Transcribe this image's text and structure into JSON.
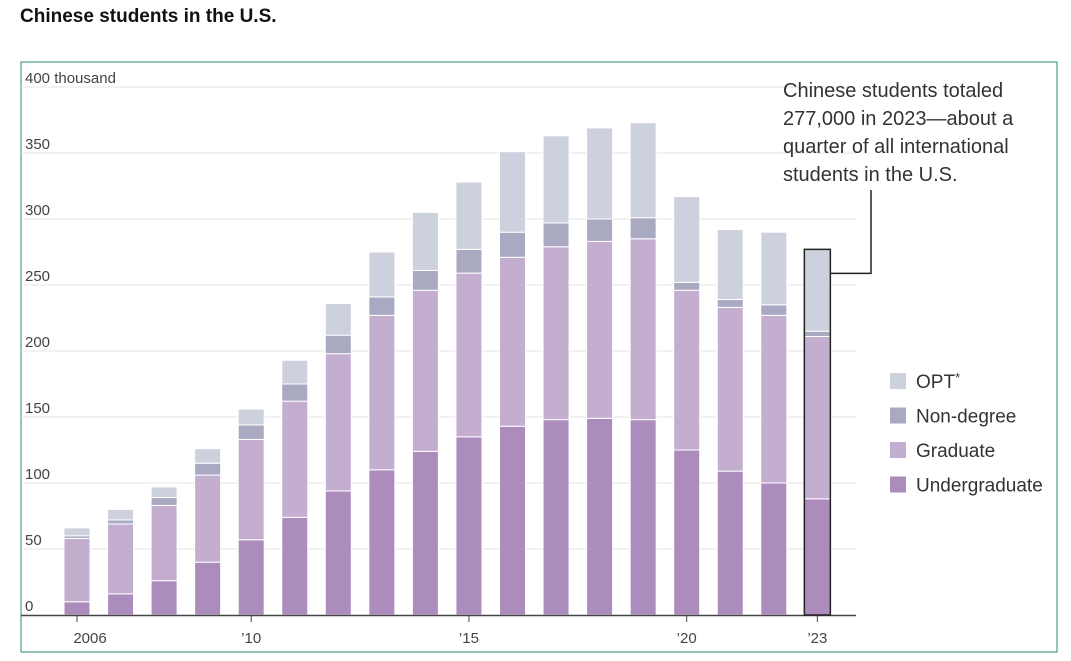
{
  "title": "Chinese students in the U.S.",
  "colors": {
    "OPT": "#cdd1dd",
    "Non-degree": "#a9a9c2",
    "Graduate": "#c4aed0",
    "Undergraduate": "#ab8cbd"
  },
  "legend": [
    {
      "name": "OPT",
      "marker": "*"
    },
    {
      "name": "Non-degree",
      "marker": ""
    },
    {
      "name": "Graduate",
      "marker": ""
    },
    {
      "name": "Undergraduate",
      "marker": ""
    }
  ],
  "annotation": {
    "lines": [
      "Chinese students totaled",
      "277,000 in 2023—about a",
      "quarter of all international",
      "students in the U.S."
    ]
  },
  "chart_data": {
    "type": "bar",
    "stacked": true,
    "title": "Chinese students in the U.S.",
    "ylabel_unit": "thousand",
    "ylim": [
      0,
      400
    ],
    "yticks": [
      0,
      50,
      100,
      150,
      200,
      250,
      300,
      350,
      400
    ],
    "ytick_labels": [
      "0",
      "50",
      "100",
      "150",
      "200",
      "250",
      "300",
      "350",
      "400 thousand"
    ],
    "categories": [
      2006,
      2007,
      2008,
      2009,
      2010,
      2011,
      2012,
      2013,
      2014,
      2015,
      2016,
      2017,
      2018,
      2019,
      2020,
      2021,
      2022,
      2023
    ],
    "xtick_labels": [
      {
        "category": 2006,
        "label": "2006"
      },
      {
        "category": 2010,
        "label": "’10"
      },
      {
        "category": 2015,
        "label": "’15"
      },
      {
        "category": 2020,
        "label": "’20"
      },
      {
        "category": 2023,
        "label": "’23"
      }
    ],
    "highlight_category": 2023,
    "series": [
      {
        "name": "Undergraduate",
        "values": [
          10,
          16,
          26,
          40,
          57,
          74,
          94,
          110,
          124,
          135,
          143,
          148,
          149,
          148,
          125,
          109,
          100,
          88
        ]
      },
      {
        "name": "Graduate",
        "values": [
          48,
          53,
          57,
          66,
          76,
          88,
          104,
          117,
          122,
          124,
          128,
          131,
          134,
          137,
          121,
          124,
          127,
          123
        ]
      },
      {
        "name": "Non-degree",
        "values": [
          2,
          3,
          6,
          9,
          11,
          13,
          14,
          14,
          15,
          18,
          19,
          18,
          17,
          16,
          6,
          6,
          8,
          4
        ]
      },
      {
        "name": "OPT",
        "values": [
          6,
          8,
          8,
          11,
          12,
          18,
          24,
          34,
          44,
          51,
          61,
          66,
          69,
          72,
          65,
          53,
          55,
          62
        ]
      }
    ]
  }
}
